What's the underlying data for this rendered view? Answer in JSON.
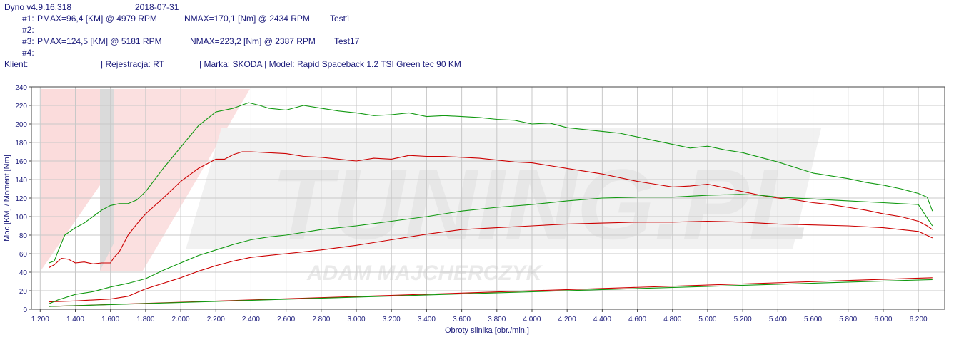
{
  "header": {
    "app": "Dyno v4.9.16.318",
    "date": "2018-07-31",
    "run1": {
      "id": "#1:",
      "pmax": "PMAX=96,4 [KM] @ 4979 RPM",
      "nmax": "NMAX=170,1 [Nm] @ 2434 RPM",
      "name": "Test1"
    },
    "run2": {
      "id": "#2:"
    },
    "run3": {
      "id": "#3:",
      "pmax": "PMAX=124,5 [KM] @ 5181 RPM",
      "nmax": "NMAX=223,2 [Nm] @ 2387 RPM",
      "name": "Test17"
    },
    "run4": {
      "id": "#4:"
    },
    "client_label": "Klient:",
    "registration": "| Rejestracja: RT",
    "vehicle": "| Marka: SKODA | Model: Rapid Spaceback 1.2 TSI Green tec 90 KM"
  },
  "watermark": {
    "brand": "V-TUNING.PL",
    "author": "ADAM MAJCHERCZYK"
  },
  "chart_data": {
    "type": "line",
    "xlabel": "Obroty silnika [obr./min.]",
    "ylabel": "Moc [KM] / Moment [Nm]",
    "xlim": [
      1150,
      6350
    ],
    "ylim": [
      0,
      240
    ],
    "x_ticks": [
      1200,
      1400,
      1600,
      1800,
      2000,
      2200,
      2400,
      2600,
      2800,
      3000,
      3200,
      3400,
      3600,
      3800,
      4000,
      4200,
      4400,
      4600,
      4800,
      5000,
      5200,
      5400,
      5600,
      5800,
      6000,
      6200
    ],
    "x_tick_labels": [
      "1.200",
      "1.400",
      "1.600",
      "1.800",
      "2.000",
      "2.200",
      "2.400",
      "2.600",
      "2.800",
      "3.000",
      "3.200",
      "3.400",
      "3.600",
      "3.800",
      "4.000",
      "4.200",
      "4.400",
      "4.600",
      "4.800",
      "5.000",
      "5.200",
      "5.400",
      "5.600",
      "5.800",
      "6.000",
      "6.200"
    ],
    "y_ticks": [
      0,
      20,
      40,
      60,
      80,
      100,
      120,
      140,
      160,
      180,
      200,
      220,
      240
    ],
    "grid": true,
    "colors": {
      "run1": "#cc0000",
      "run3": "#119911",
      "axis_text": "#1a1a7a",
      "grid": "#c8c8c8"
    },
    "series": [
      {
        "name": "Test1",
        "color": "#cc0000",
        "x": [
          1250,
          1280,
          1320,
          1360,
          1400,
          1450,
          1500,
          1550,
          1600,
          1620,
          1650,
          1700,
          1750,
          1800,
          1900,
          2000,
          2100,
          2200,
          2250,
          2300,
          2350,
          2400,
          2500,
          2600,
          2700,
          2800,
          2900,
          3000,
          3100,
          3200,
          3300,
          3400,
          3500,
          3600,
          3700,
          3800,
          3900,
          4000,
          4100,
          4200,
          4300,
          4400,
          4500,
          4600,
          4700,
          4800,
          4900,
          5000,
          5100,
          5200,
          5300,
          5400,
          5500,
          5600,
          5700,
          5800,
          5900,
          6000,
          6100,
          6200,
          6250,
          6280
        ],
        "y": [
          45,
          48,
          55,
          54,
          50,
          51,
          49,
          50,
          50,
          56,
          62,
          80,
          92,
          103,
          120,
          138,
          152,
          162,
          162,
          167,
          170,
          170,
          169,
          168,
          165,
          164,
          162,
          160,
          163,
          162,
          166,
          165,
          165,
          164,
          163,
          161,
          159,
          158,
          155,
          152,
          149,
          146,
          142,
          138,
          135,
          132,
          133,
          135,
          131,
          127,
          123,
          120,
          118,
          115,
          113,
          110,
          107,
          103,
          100,
          95,
          90,
          86
        ]
      },
      {
        "name": "Test1",
        "color": "#cc0000",
        "x": [
          1250,
          1400,
          1600,
          1700,
          1800,
          2000,
          2100,
          2200,
          2300,
          2400,
          2600,
          2800,
          3000,
          3200,
          3400,
          3600,
          3800,
          4000,
          4200,
          4400,
          4600,
          4800,
          5000,
          5200,
          5400,
          5600,
          5800,
          6000,
          6200,
          6280
        ],
        "y": [
          8,
          9,
          11,
          14,
          22,
          34,
          41,
          47,
          52,
          56,
          60,
          64,
          69,
          75,
          81,
          86,
          88,
          90,
          92,
          93,
          94,
          94,
          95,
          94,
          92,
          91,
          90,
          88,
          84,
          77
        ]
      },
      {
        "name": "Test17",
        "color": "#119911",
        "x": [
          1250,
          1280,
          1300,
          1340,
          1400,
          1450,
          1500,
          1550,
          1600,
          1650,
          1700,
          1750,
          1800,
          1900,
          2000,
          2100,
          2200,
          2300,
          2387,
          2450,
          2500,
          2600,
          2700,
          2800,
          2900,
          3000,
          3100,
          3200,
          3300,
          3400,
          3500,
          3600,
          3700,
          3800,
          3900,
          4000,
          4100,
          4200,
          4300,
          4400,
          4500,
          4600,
          4700,
          4800,
          4900,
          5000,
          5100,
          5200,
          5300,
          5400,
          5500,
          5600,
          5700,
          5800,
          5900,
          6000,
          6100,
          6200,
          6250,
          6280
        ],
        "y": [
          50,
          52,
          62,
          80,
          88,
          93,
          100,
          107,
          112,
          114,
          114,
          118,
          127,
          152,
          175,
          198,
          213,
          217,
          223,
          220,
          217,
          215,
          220,
          217,
          214,
          212,
          209,
          210,
          212,
          208,
          209,
          208,
          207,
          205,
          204,
          200,
          201,
          196,
          194,
          192,
          190,
          186,
          182,
          178,
          174,
          176,
          172,
          169,
          164,
          159,
          153,
          147,
          144,
          141,
          137,
          134,
          130,
          125,
          121,
          106
        ]
      },
      {
        "name": "Test17",
        "color": "#119911",
        "x": [
          1250,
          1300,
          1400,
          1500,
          1600,
          1700,
          1800,
          1900,
          2000,
          2100,
          2200,
          2300,
          2400,
          2500,
          2600,
          2800,
          3000,
          3200,
          3400,
          3600,
          3800,
          4000,
          4200,
          4400,
          4600,
          4800,
          5000,
          5181,
          5300,
          5400,
          5600,
          5800,
          6000,
          6200,
          6280
        ],
        "y": [
          6,
          10,
          16,
          19,
          24,
          28,
          33,
          42,
          50,
          58,
          64,
          70,
          75,
          78,
          80,
          86,
          90,
          95,
          100,
          106,
          110,
          113,
          117,
          120,
          121,
          121,
          123,
          124,
          123,
          121,
          119,
          117,
          115,
          113,
          90
        ]
      },
      {
        "name": "",
        "color": "#cc0000",
        "x": [
          1250,
          6280
        ],
        "y": [
          3,
          34
        ]
      },
      {
        "name": "",
        "color": "#119911",
        "x": [
          1250,
          6280
        ],
        "y": [
          3,
          32
        ]
      }
    ]
  }
}
